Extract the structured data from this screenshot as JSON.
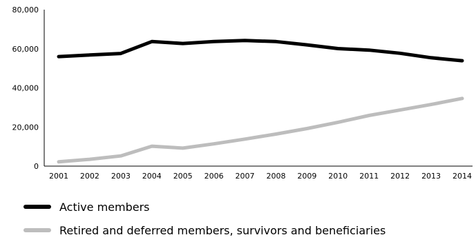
{
  "chart_data": {
    "type": "line",
    "title": "",
    "xlabel": "",
    "ylabel": "",
    "x": [
      "2001",
      "2002",
      "2003",
      "2004",
      "2005",
      "2006",
      "2007",
      "2008",
      "2009",
      "2010",
      "2011",
      "2012",
      "2013",
      "2014"
    ],
    "ylim": [
      0,
      80000
    ],
    "yticks": [
      0,
      20000,
      40000,
      60000,
      80000
    ],
    "ytick_labels": [
      "0",
      "20,000",
      "40,000",
      "60,000",
      "80,000"
    ],
    "grid": false,
    "legend_position": "bottom",
    "series": [
      {
        "name": "Active members",
        "color": "#000000",
        "values": [
          56000,
          56800,
          57600,
          63700,
          62700,
          63700,
          64200,
          63700,
          62000,
          60100,
          59300,
          57700,
          55400,
          53900
        ]
      },
      {
        "name": "Retired and deferred members, survivors and beneficiaries",
        "color": "#bdbdbd",
        "values": [
          2200,
          3500,
          5200,
          10200,
          9200,
          11400,
          13800,
          16400,
          19200,
          22400,
          25900,
          28700,
          31500,
          34600
        ]
      }
    ]
  }
}
